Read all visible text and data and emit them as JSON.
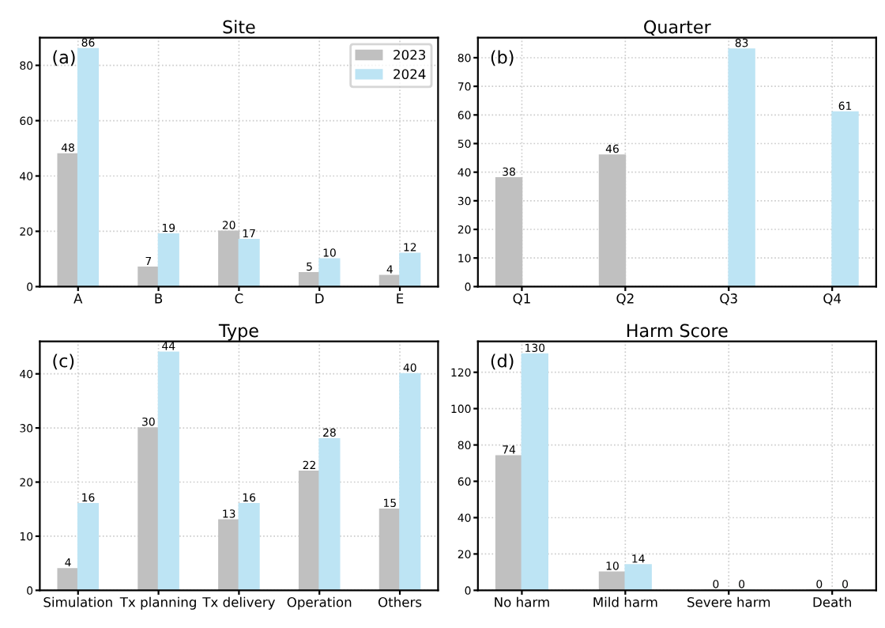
{
  "chart_data": [
    {
      "type": "bar",
      "title": "Site",
      "annotations": [
        "(a)"
      ],
      "categories": [
        "A",
        "B",
        "C",
        "D",
        "E"
      ],
      "series": [
        {
          "name": "2023",
          "color": "#c0c0c0",
          "values": [
            48,
            7,
            20,
            5,
            4
          ]
        },
        {
          "name": "2024",
          "color": "#bde4f4",
          "values": [
            86,
            19,
            17,
            10,
            12
          ]
        }
      ],
      "ylim": [
        0,
        90
      ],
      "yticks": [
        0,
        20,
        40,
        60,
        80
      ],
      "grid": true,
      "legend": "top right",
      "data_labels": true
    },
    {
      "type": "bar",
      "title": "Quarter",
      "annotations": [
        "(b)"
      ],
      "categories": [
        "Q1",
        "Q2",
        "Q3",
        "Q4"
      ],
      "series": [
        {
          "color": "#c0c0c0",
          "values": [
            38,
            46,
            null,
            null
          ]
        },
        {
          "color": "#bde4f4",
          "values": [
            null,
            null,
            83,
            61
          ]
        }
      ],
      "ylim": [
        0,
        87
      ],
      "yticks": [
        0,
        10,
        20,
        30,
        40,
        50,
        60,
        70,
        80
      ],
      "grid": true,
      "data_labels": true
    },
    {
      "type": "bar",
      "title": "Type",
      "annotations": [
        "(c)"
      ],
      "categories": [
        "Simulation",
        "Tx planning",
        "Tx delivery",
        "Operation",
        "Others"
      ],
      "series": [
        {
          "color": "#c0c0c0",
          "values": [
            4,
            30,
            13,
            22,
            15
          ]
        },
        {
          "color": "#bde4f4",
          "values": [
            16,
            44,
            16,
            28,
            40
          ]
        }
      ],
      "ylim": [
        0,
        46
      ],
      "yticks": [
        0,
        10,
        20,
        30,
        40
      ],
      "grid": true,
      "data_labels": true
    },
    {
      "type": "bar",
      "title": "Harm Score",
      "annotations": [
        "(d)"
      ],
      "categories": [
        "No harm",
        "Mild harm",
        "Severe harm",
        "Death"
      ],
      "series": [
        {
          "color": "#c0c0c0",
          "values": [
            74,
            10,
            0,
            0
          ]
        },
        {
          "color": "#bde4f4",
          "values": [
            130,
            14,
            0,
            0
          ]
        }
      ],
      "ylim": [
        0,
        137
      ],
      "yticks": [
        0,
        20,
        40,
        60,
        80,
        100,
        120
      ],
      "grid": true,
      "data_labels": true
    }
  ]
}
